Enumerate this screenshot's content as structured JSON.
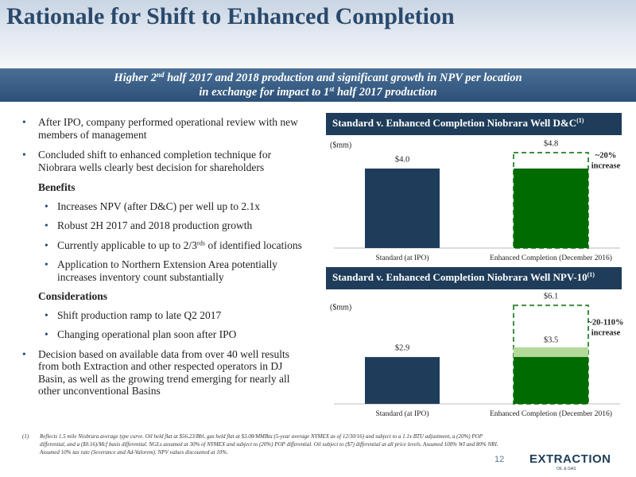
{
  "header": {
    "title": "Rationale for Shift to Enhanced Completion"
  },
  "banner": {
    "lines": [
      [
        "Higher 2",
        {
          "sup": "nd"
        },
        " half 2017 and 2018 production and significant growth in NPV per location"
      ],
      [
        "in exchange for impact to 1",
        {
          "sup": "st"
        },
        " half 2017 production"
      ]
    ]
  },
  "bullets": [
    "After IPO, company performed operational review with new members of management",
    "Concluded shift to enhanced completion technique for Niobrara wells clearly best decision for shareholders"
  ],
  "sections": [
    {
      "heading": "Benefits",
      "items": [
        "Increases NPV (after D&C) per well up to 2.1x",
        "Robust 2H 2017 and 2018 production growth",
        [
          "Currently applicable to up to 2/3",
          {
            "sup": "rds"
          },
          " of identified locations"
        ],
        "Application to Northern Extension Area potentially increases inventory count substantially"
      ]
    },
    {
      "heading": "Considerations",
      "items": [
        "Shift production ramp to late Q2 2017",
        "Changing operational plan soon after IPO"
      ]
    }
  ],
  "closing_bullet": "Decision based on available data from over 40 well results from both Extraction and other respected operators in DJ Basin, as well as the growing trend emerging for nearly all other unconventional Basins",
  "chart_data": [
    {
      "type": "bar",
      "title": [
        "Standard v. Enhanced Completion Niobrara Well D&C",
        {
          "sup": "(1)"
        }
      ],
      "unit_label": "($mm)",
      "categories": [
        "Standard (at IPO)",
        "Enhanced Completion (December 2016)"
      ],
      "values": [
        4.0,
        4.8
      ],
      "value_labels": [
        "$4.0",
        "$4.8"
      ],
      "colors": [
        "#1f3d5a",
        "#006b00"
      ],
      "fill_values": [
        null,
        4.0
      ],
      "ylim": [
        0,
        5.6
      ],
      "annotation": [
        "~20%",
        "increase"
      ]
    },
    {
      "type": "bar",
      "title": [
        "Standard v. Enhanced Completion Niobrara Well NPV-10",
        {
          "sup": "(1)"
        }
      ],
      "unit_label": "($mm)",
      "categories": [
        "Standard (at IPO)",
        "Enhanced Completion (December 2016)"
      ],
      "values": [
        2.9,
        6.1
      ],
      "value_labels": [
        "$2.9",
        "$6.1"
      ],
      "colors": [
        "#1f3d5a",
        "#006b00"
      ],
      "fill_values": [
        null,
        2.9
      ],
      "mid_values": [
        null,
        3.5
      ],
      "mid_value_labels": [
        null,
        "$3.5"
      ],
      "mid_color": "#b3d99b",
      "ylim": [
        0,
        6.5
      ],
      "annotation": [
        "~20-110%",
        "increase"
      ]
    }
  ],
  "footnote": {
    "marker": "(1)",
    "text": "Reflects 1.5 mile Niobrara average type curve. Oil held flat at $56.23/Bbl, gas held flat at $3.08/MMBtu (5-year average NYMEX as of 12/30/16) and subject to a 1.1x BTU adjustment, a (20%) POP differential, and a ($0.16)/Mcf basis differential. NGLs assumed at 30% of NYMEX and subject to (20%) POP differential. Oil subject to ($7) differential at all price levels. Assumed 100% WI and 80% NRI. Assumed 10% tax rate (Severance and Ad-Valorem). NPV values discounted at 10%."
  },
  "page_number": "12",
  "logo": {
    "name": "EXTRACTION",
    "sub": "OIL & GAS"
  }
}
